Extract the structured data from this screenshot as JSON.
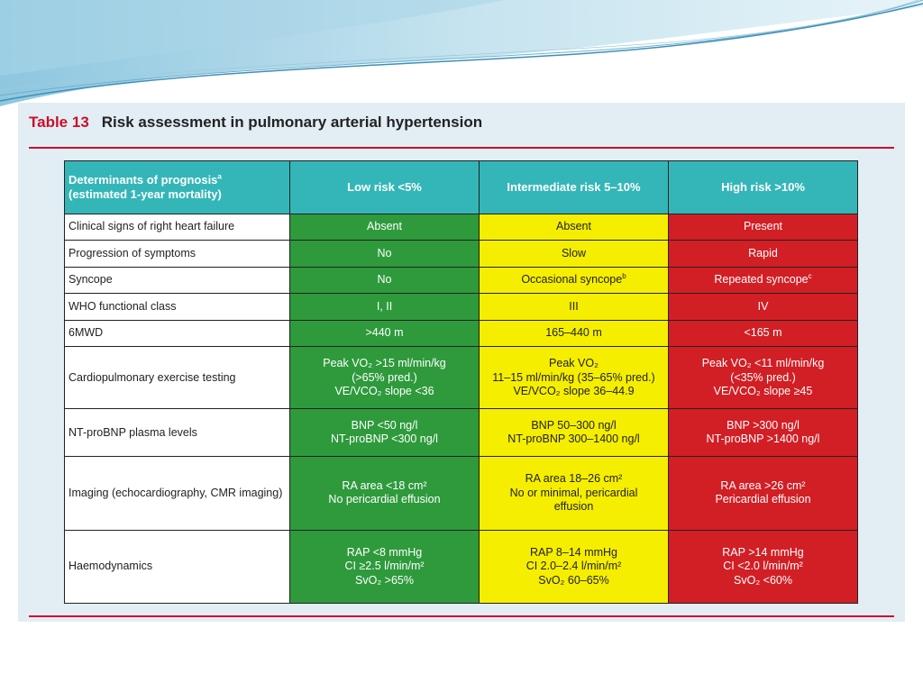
{
  "table": {
    "number": "Table 13",
    "title": "Risk assessment in pulmonary arterial hypertension",
    "header": {
      "determinants_line1": "Determinants of prognosis",
      "determinants_sup": "a",
      "determinants_line2": "(estimated 1-year mortality)",
      "low": "Low risk <5%",
      "intermediate": "Intermediate risk 5–10%",
      "high": "High risk >10%"
    },
    "rows": [
      {
        "label": "Clinical signs of right heart failure",
        "low": [
          "Absent"
        ],
        "intermediate": [
          "Absent"
        ],
        "high": [
          "Present"
        ]
      },
      {
        "label": "Progression of symptoms",
        "low": [
          "No"
        ],
        "intermediate": [
          "Slow"
        ],
        "high": [
          "Rapid"
        ]
      },
      {
        "label": "Syncope",
        "low": [
          "No"
        ],
        "intermediate": [
          "Occasional syncope"
        ],
        "intermediate_sup": "b",
        "high": [
          "Repeated syncope"
        ],
        "high_sup": "c"
      },
      {
        "label": "WHO functional class",
        "low": [
          "I, II"
        ],
        "intermediate": [
          "III"
        ],
        "high": [
          "IV"
        ]
      },
      {
        "label": "6MWD",
        "low": [
          ">440 m"
        ],
        "intermediate": [
          "165–440 m"
        ],
        "high": [
          "<165 m"
        ]
      },
      {
        "label": "Cardiopulmonary exercise testing",
        "low": [
          "Peak VO₂ >15 ml/min/kg",
          "(>65% pred.)",
          "VE/VCO₂ slope <36"
        ],
        "intermediate": [
          "Peak VO₂",
          "11–15 ml/min/kg (35–65% pred.)",
          "VE/VCO₂ slope 36–44.9"
        ],
        "high": [
          "Peak VO₂ <11 ml/min/kg",
          "(<35% pred.)",
          "VE/VCO₂ slope ≥45"
        ]
      },
      {
        "label": "NT-proBNP plasma levels",
        "low": [
          "BNP <50 ng/l",
          "NT-proBNP <300 ng/l"
        ],
        "intermediate": [
          "BNP 50–300 ng/l",
          "NT-proBNP 300–1400 ng/l"
        ],
        "high": [
          "BNP >300 ng/l",
          "NT-proBNP >1400 ng/l"
        ]
      },
      {
        "label": "Imaging (echocardiography, CMR imaging)",
        "low": [
          "RA area <18 cm²",
          "No pericardial effusion"
        ],
        "intermediate": [
          "RA area 18–26 cm²",
          "No or minimal, pericardial",
          "effusion"
        ],
        "high": [
          "RA area >26 cm²",
          "Pericardial effusion"
        ]
      },
      {
        "label": "Haemodynamics",
        "low": [
          "RAP <8 mmHg",
          "CI ≥2.5 l/min/m²",
          "SvO₂ >65%"
        ],
        "intermediate": [
          "RAP 8–14 mmHg",
          "CI 2.0–2.4 l/min/m²",
          "SvO₂ 60–65%"
        ],
        "high": [
          "RAP >14 mmHg",
          "CI <2.0 l/min/m²",
          "SvO₂ <60%"
        ]
      }
    ]
  },
  "colors": {
    "header": "#34b6b8",
    "low": "#2e9a3c",
    "intermediate": "#f5ee00",
    "high": "#d11f25",
    "accent_rule": "#c8102e"
  }
}
